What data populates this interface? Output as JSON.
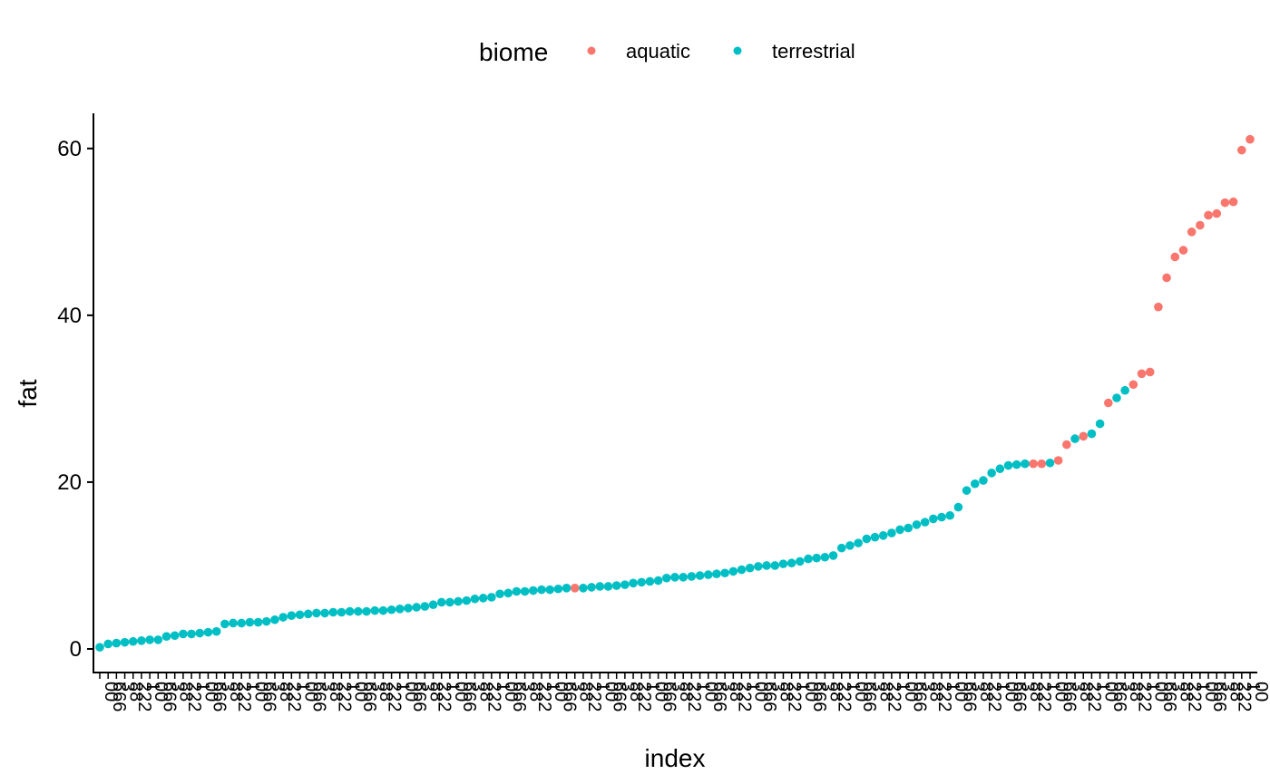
{
  "chart_data": {
    "type": "scatter",
    "title": "",
    "xlabel": "index",
    "ylabel": "fat",
    "ylim": [
      -2.5,
      63
    ],
    "yticks": [
      0,
      20,
      40,
      60
    ],
    "grid": false,
    "legend": {
      "title": "biome",
      "position": "top",
      "entries": [
        {
          "label": "aquatic",
          "color": "#F8766D"
        },
        {
          "label": "terrestrial",
          "color": "#00BFC4"
        }
      ]
    },
    "x_tick_labels_note": "overlapping, illegible rotated labels",
    "series": [
      {
        "name": "aquatic",
        "color": "#F8766D",
        "points": [
          [
            58,
            7.3
          ],
          [
            113,
            22.2
          ],
          [
            114,
            22.2
          ],
          [
            116,
            22.6
          ],
          [
            117,
            24.5
          ],
          [
            119,
            25.5
          ],
          [
            122,
            29.5
          ],
          [
            125,
            31.7
          ],
          [
            126,
            33.0
          ],
          [
            127,
            33.2
          ],
          [
            128,
            41.0
          ],
          [
            129,
            44.5
          ],
          [
            130,
            47.0
          ],
          [
            131,
            47.8
          ],
          [
            132,
            50.0
          ],
          [
            133,
            50.8
          ],
          [
            134,
            52.0
          ],
          [
            135,
            52.2
          ],
          [
            136,
            53.5
          ],
          [
            137,
            53.6
          ],
          [
            138,
            59.8
          ],
          [
            139,
            61.1
          ]
        ]
      },
      {
        "name": "terrestrial",
        "color": "#00BFC4",
        "points": [
          [
            1,
            0.2
          ],
          [
            2,
            0.6
          ],
          [
            3,
            0.7
          ],
          [
            4,
            0.8
          ],
          [
            5,
            0.9
          ],
          [
            6,
            1.0
          ],
          [
            7,
            1.1
          ],
          [
            8,
            1.1
          ],
          [
            9,
            1.5
          ],
          [
            10,
            1.6
          ],
          [
            11,
            1.8
          ],
          [
            12,
            1.8
          ],
          [
            13,
            1.9
          ],
          [
            14,
            2.0
          ],
          [
            15,
            2.1
          ],
          [
            16,
            3.0
          ],
          [
            17,
            3.1
          ],
          [
            18,
            3.1
          ],
          [
            19,
            3.2
          ],
          [
            20,
            3.2
          ],
          [
            21,
            3.3
          ],
          [
            22,
            3.5
          ],
          [
            23,
            3.8
          ],
          [
            24,
            4.0
          ],
          [
            25,
            4.1
          ],
          [
            26,
            4.2
          ],
          [
            27,
            4.3
          ],
          [
            28,
            4.3
          ],
          [
            29,
            4.4
          ],
          [
            30,
            4.4
          ],
          [
            31,
            4.5
          ],
          [
            32,
            4.5
          ],
          [
            33,
            4.5
          ],
          [
            34,
            4.6
          ],
          [
            35,
            4.6
          ],
          [
            36,
            4.7
          ],
          [
            37,
            4.8
          ],
          [
            38,
            4.9
          ],
          [
            39,
            5.0
          ],
          [
            40,
            5.1
          ],
          [
            41,
            5.3
          ],
          [
            42,
            5.6
          ],
          [
            43,
            5.6
          ],
          [
            44,
            5.7
          ],
          [
            45,
            5.8
          ],
          [
            46,
            6.0
          ],
          [
            47,
            6.1
          ],
          [
            48,
            6.2
          ],
          [
            49,
            6.6
          ],
          [
            50,
            6.7
          ],
          [
            51,
            6.9
          ],
          [
            52,
            6.9
          ],
          [
            53,
            7.0
          ],
          [
            54,
            7.1
          ],
          [
            55,
            7.1
          ],
          [
            56,
            7.2
          ],
          [
            57,
            7.3
          ],
          [
            59,
            7.3
          ],
          [
            60,
            7.4
          ],
          [
            61,
            7.5
          ],
          [
            62,
            7.5
          ],
          [
            63,
            7.6
          ],
          [
            64,
            7.7
          ],
          [
            65,
            7.9
          ],
          [
            66,
            8.0
          ],
          [
            67,
            8.1
          ],
          [
            68,
            8.2
          ],
          [
            69,
            8.5
          ],
          [
            70,
            8.6
          ],
          [
            71,
            8.6
          ],
          [
            72,
            8.7
          ],
          [
            73,
            8.8
          ],
          [
            74,
            8.9
          ],
          [
            75,
            9.0
          ],
          [
            76,
            9.1
          ],
          [
            77,
            9.3
          ],
          [
            78,
            9.5
          ],
          [
            79,
            9.7
          ],
          [
            80,
            9.9
          ],
          [
            81,
            10.0
          ],
          [
            82,
            10.0
          ],
          [
            83,
            10.2
          ],
          [
            84,
            10.3
          ],
          [
            85,
            10.5
          ],
          [
            86,
            10.8
          ],
          [
            87,
            10.9
          ],
          [
            88,
            11.0
          ],
          [
            89,
            11.2
          ],
          [
            90,
            12.1
          ],
          [
            91,
            12.4
          ],
          [
            92,
            12.7
          ],
          [
            93,
            13.2
          ],
          [
            94,
            13.4
          ],
          [
            95,
            13.6
          ],
          [
            96,
            13.9
          ],
          [
            97,
            14.3
          ],
          [
            98,
            14.5
          ],
          [
            99,
            14.9
          ],
          [
            100,
            15.2
          ],
          [
            101,
            15.6
          ],
          [
            102,
            15.8
          ],
          [
            103,
            16.0
          ],
          [
            104,
            17.0
          ],
          [
            105,
            19.0
          ],
          [
            106,
            19.8
          ],
          [
            107,
            20.2
          ],
          [
            108,
            21.1
          ],
          [
            109,
            21.6
          ],
          [
            110,
            22.0
          ],
          [
            111,
            22.1
          ],
          [
            112,
            22.2
          ],
          [
            115,
            22.3
          ],
          [
            118,
            25.2
          ],
          [
            120,
            25.8
          ],
          [
            121,
            27.0
          ],
          [
            123,
            30.1
          ],
          [
            124,
            31.0
          ]
        ]
      }
    ]
  }
}
